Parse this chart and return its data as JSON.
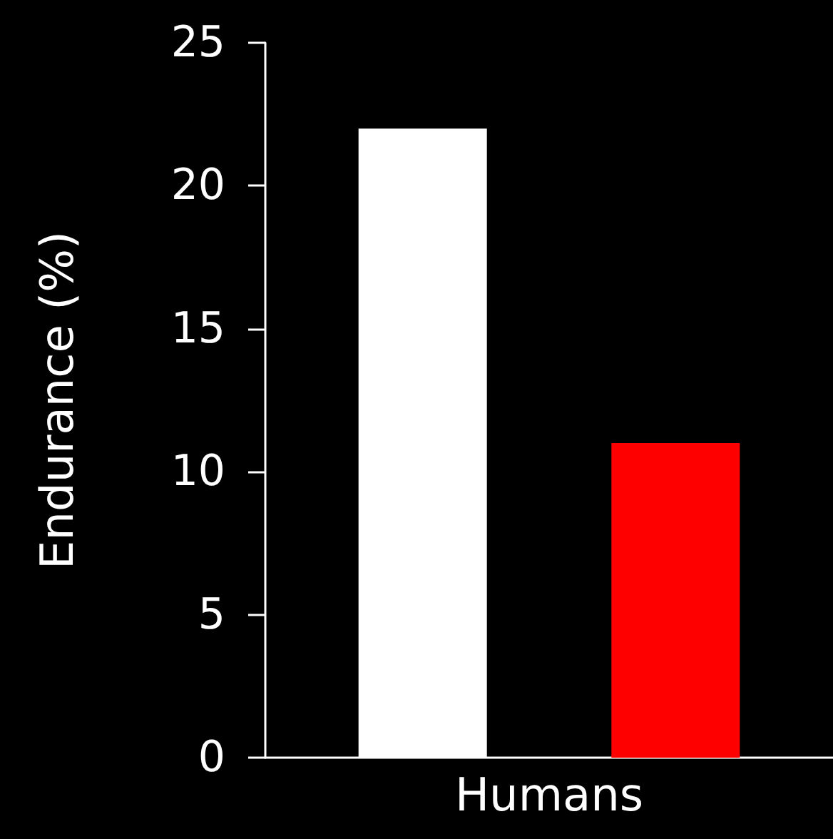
{
  "chart_data": {
    "type": "bar",
    "ylabel": "Endurance (%)",
    "categories": [
      "Humans"
    ],
    "series": [
      {
        "color": "#ffffff",
        "values": [
          22
        ]
      },
      {
        "color": "#ff0000",
        "values": [
          11
        ]
      }
    ],
    "ylim": [
      0,
      25
    ],
    "yticks": [
      0,
      5,
      10,
      15,
      20,
      25
    ],
    "grid": false
  }
}
